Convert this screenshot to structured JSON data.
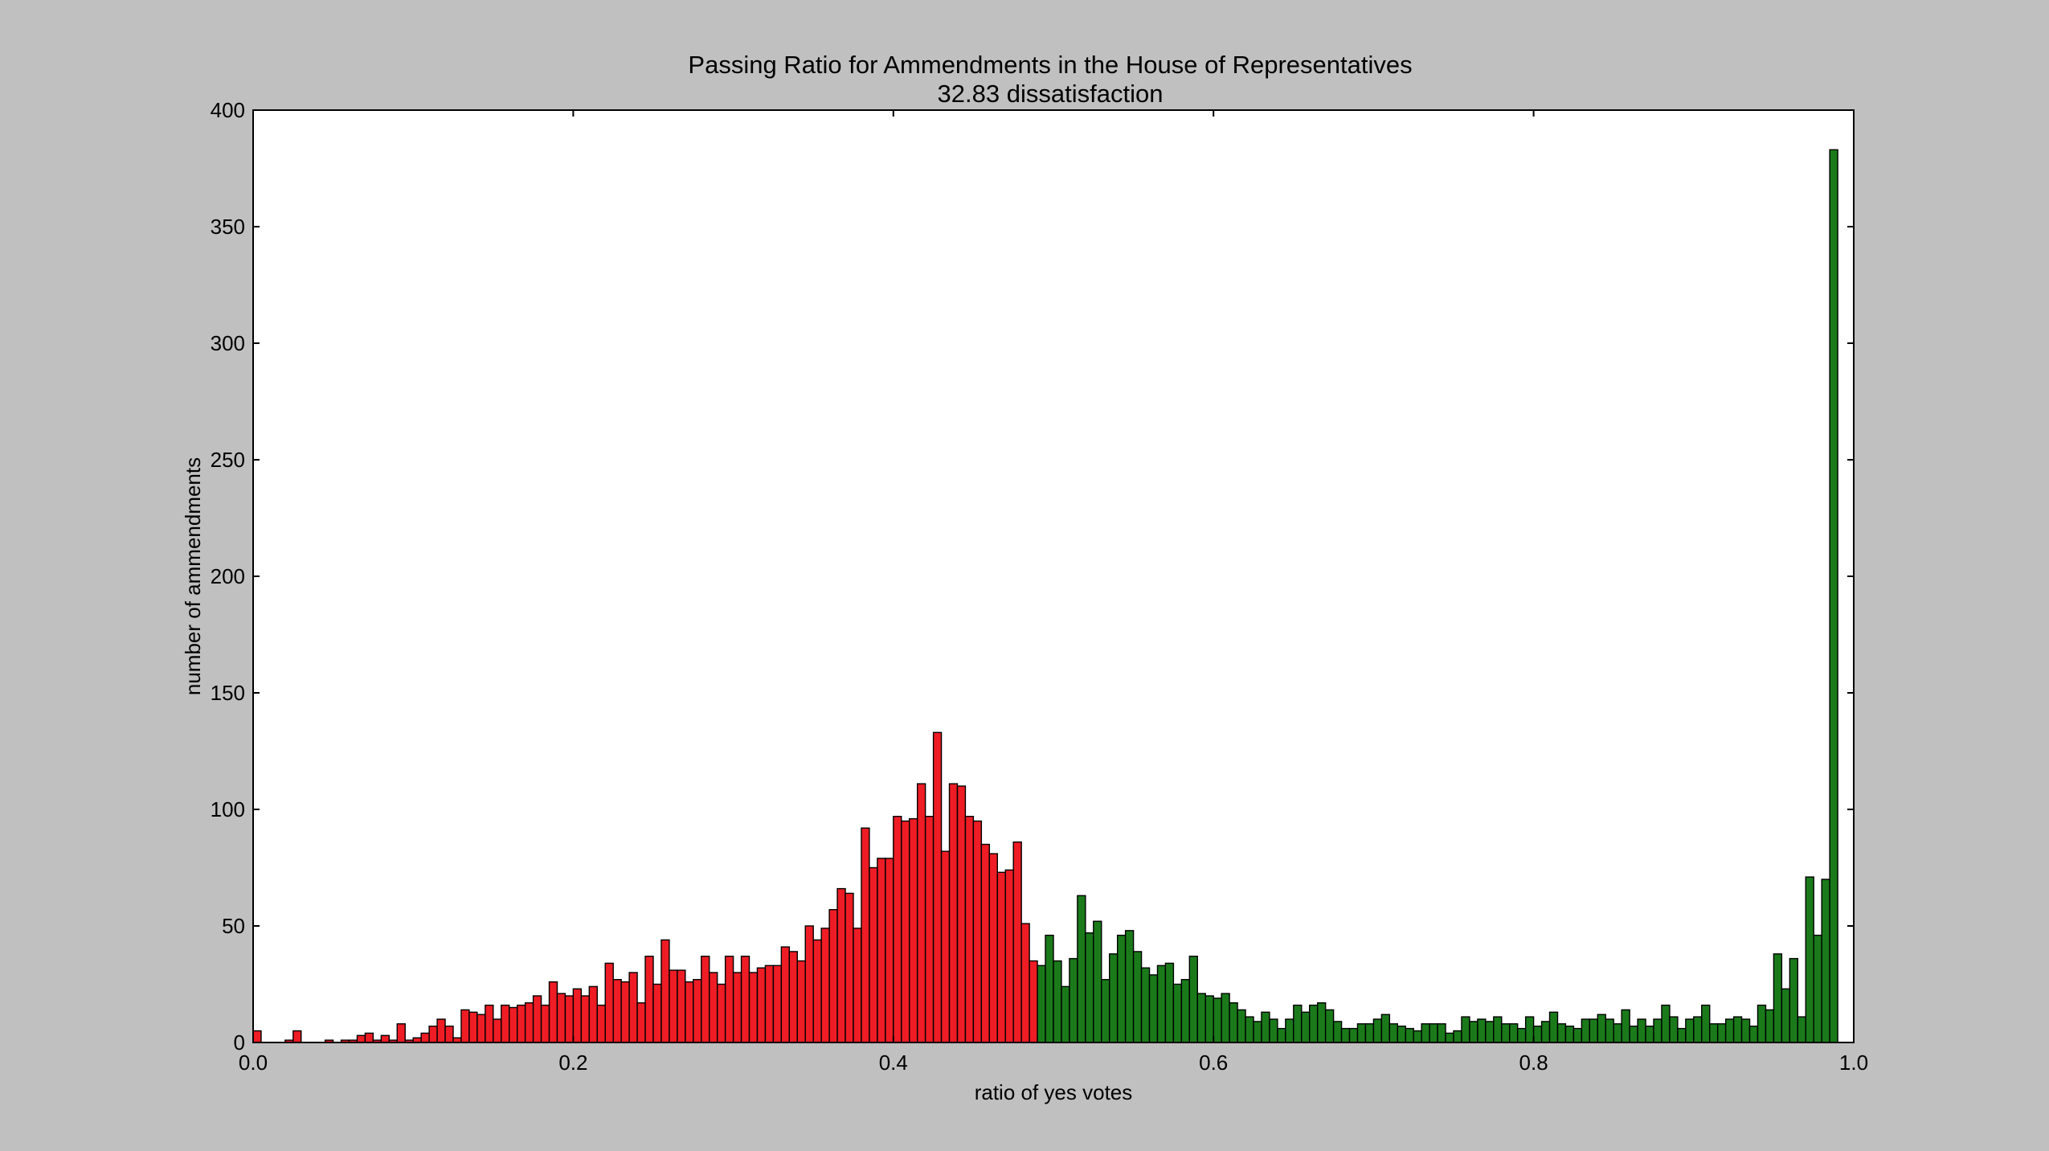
{
  "chart_data": {
    "type": "bar",
    "title": "Passing Ratio for Ammendments in the House of Representatives",
    "subtitle": "32.83 dissatisfaction",
    "xlabel": "ratio of yes votes",
    "ylabel": "number of ammendments",
    "xlim": [
      0.0,
      1.0
    ],
    "ylim": [
      0,
      400
    ],
    "x_ticks": [
      "0.0",
      "0.2",
      "0.4",
      "0.6",
      "0.8",
      "1.0"
    ],
    "y_ticks": [
      "0",
      "50",
      "100",
      "150",
      "200",
      "250",
      "300",
      "350",
      "400"
    ],
    "grid": false,
    "bin_width": 0.005,
    "colors": {
      "failed": "#ee1c24",
      "passed": "#1a7a1a",
      "edge": "#000000",
      "background": "#c0c0c0",
      "plot_area": "#ffffff"
    },
    "series": [
      {
        "key": "failed",
        "values": [
          5,
          0,
          0,
          0,
          1,
          5,
          0,
          0,
          0,
          1,
          0,
          1,
          1,
          3,
          4,
          1,
          3,
          1,
          8,
          1,
          2,
          4,
          7,
          10,
          7,
          2,
          14,
          13,
          12,
          16,
          10,
          16,
          15,
          16,
          17,
          20,
          16,
          26,
          21,
          20,
          23,
          20,
          24,
          16,
          34,
          27,
          26,
          30,
          17,
          37,
          25,
          44,
          31,
          31,
          26,
          27,
          37,
          30,
          25,
          37,
          30,
          37,
          30,
          32,
          33,
          33,
          41,
          39,
          35,
          50,
          44,
          49,
          57,
          66,
          64,
          49,
          92,
          75,
          79,
          79,
          97,
          95,
          96,
          111,
          97,
          133,
          82,
          111,
          110,
          97,
          95,
          85,
          81,
          73,
          74,
          86,
          51,
          35,
          2,
          3,
          4,
          2,
          1,
          3,
          4,
          3,
          3,
          1,
          2,
          3,
          4,
          3,
          1,
          2,
          3,
          1,
          1,
          0,
          1,
          0,
          0,
          0,
          0,
          0,
          0,
          0,
          1,
          0,
          0,
          0,
          0,
          0,
          0,
          0,
          0,
          0,
          0,
          0,
          0,
          0,
          0,
          0,
          0,
          0,
          0,
          0,
          0,
          0,
          0,
          0,
          0,
          0,
          0,
          0,
          0,
          0,
          0,
          0,
          0,
          0,
          0,
          0,
          0,
          0,
          0,
          0,
          0,
          0,
          0,
          0,
          0,
          0,
          0,
          0,
          0,
          0,
          0,
          0,
          0,
          0,
          0,
          0,
          0,
          0,
          0,
          0,
          0,
          0,
          0,
          0,
          0,
          0,
          0,
          0,
          0,
          0,
          0,
          0,
          0,
          0,
          0,
          0,
          0
        ]
      },
      {
        "key": "passed",
        "values": [
          0,
          0,
          0,
          0,
          0,
          0,
          0,
          0,
          0,
          0,
          0,
          0,
          0,
          0,
          0,
          0,
          0,
          0,
          0,
          0,
          0,
          0,
          0,
          0,
          0,
          0,
          0,
          0,
          0,
          0,
          0,
          0,
          0,
          0,
          0,
          0,
          0,
          0,
          0,
          0,
          0,
          0,
          0,
          0,
          0,
          0,
          0,
          0,
          0,
          0,
          0,
          0,
          0,
          0,
          0,
          0,
          0,
          0,
          0,
          0,
          0,
          0,
          0,
          0,
          0,
          0,
          0,
          0,
          0,
          0,
          0,
          0,
          0,
          0,
          0,
          0,
          0,
          0,
          0,
          0,
          0,
          0,
          0,
          0,
          0,
          0,
          0,
          0,
          0,
          0,
          0,
          0,
          0,
          0,
          0,
          0,
          0,
          0,
          33,
          46,
          35,
          24,
          36,
          63,
          47,
          52,
          27,
          38,
          46,
          48,
          39,
          32,
          29,
          33,
          34,
          25,
          27,
          37,
          21,
          20,
          19,
          21,
          17,
          14,
          11,
          9,
          13,
          10,
          6,
          10,
          16,
          13,
          16,
          17,
          14,
          9,
          6,
          6,
          8,
          8,
          10,
          12,
          8,
          7,
          6,
          5,
          8,
          8,
          8,
          4,
          5,
          11,
          9,
          10,
          9,
          11,
          8,
          8,
          6,
          11,
          7,
          9,
          13,
          8,
          7,
          6,
          10,
          10,
          12,
          10,
          8,
          14,
          7,
          10,
          7,
          10,
          16,
          11,
          6,
          10,
          11,
          16,
          8,
          8,
          10,
          11,
          10,
          7,
          16,
          14,
          38,
          23,
          36,
          11,
          71,
          46,
          70,
          383
        ]
      }
    ]
  }
}
